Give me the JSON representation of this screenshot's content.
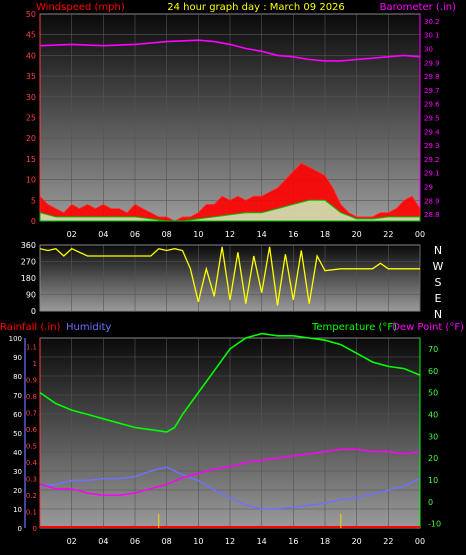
{
  "header": {
    "left_title": "Windspeed (mph)",
    "center_title": "24 hour graph day : March 09 2026",
    "right_title": "Barometer (.in)"
  },
  "lower_header": {
    "rain_label": "Rainfall (.in)",
    "humidity_label": "Humidity",
    "temp_label": "Temperature (°F)",
    "dew_label": "Dew Point (°F)"
  },
  "colors": {
    "wind": "#ff0000",
    "gust_fill": "#ff0000",
    "avg_wind": "#00c000",
    "barometer": "#ff00ff",
    "direction": "#ffff00",
    "rain": "#ff0000",
    "humidity": "#7070ff",
    "temperature": "#00ff00",
    "dew_point": "#ff00ff",
    "axis_text": "#ffffff"
  },
  "chart_data": [
    {
      "type": "area",
      "name": "wind",
      "x_ticks": [
        "02",
        "04",
        "06",
        "08",
        "10",
        "12",
        "14",
        "16",
        "18",
        "20",
        "22",
        "00"
      ],
      "y_left_ticks": [
        0,
        5,
        10,
        15,
        20,
        25,
        30,
        35,
        40,
        45,
        50
      ],
      "y_left_range": [
        0,
        50
      ],
      "y_right_ticks": [
        "28.8",
        "28.9",
        "29",
        "29.1",
        "29.2",
        "29.3",
        "29.4",
        "29.5",
        "29.6",
        "29.7",
        "29.8",
        "29.9",
        "30",
        "30.1",
        "30.2"
      ],
      "y_right_range": [
        28.75,
        30.25
      ],
      "x_range": [
        0,
        24
      ],
      "series": [
        {
          "name": "Windspeed",
          "x": [
            0,
            0.5,
            1,
            1.5,
            2,
            2.5,
            3,
            3.5,
            4,
            4.5,
            5,
            5.5,
            6,
            6.5,
            7,
            7.5,
            8,
            8.5,
            9,
            9.5,
            10,
            10.5,
            11,
            11.5,
            12,
            12.5,
            13,
            13.5,
            14,
            14.5,
            15,
            15.5,
            16,
            16.5,
            17,
            17.5,
            18,
            18.5,
            19,
            19.5,
            20,
            20.5,
            21,
            21.5,
            22,
            22.5,
            23,
            23.5,
            24
          ],
          "values": [
            6,
            4,
            3,
            2,
            4,
            3,
            4,
            3,
            4,
            3,
            3,
            2,
            4,
            3,
            2,
            1,
            1,
            0,
            1,
            1,
            2,
            4,
            4,
            6,
            5,
            6,
            5,
            6,
            6,
            7,
            8,
            10,
            12,
            14,
            13,
            12,
            11,
            8,
            4,
            2,
            1,
            1,
            1,
            2,
            2,
            3,
            5,
            6,
            3
          ]
        },
        {
          "name": "Average",
          "x": [
            0,
            1,
            2,
            3,
            4,
            5,
            6,
            7,
            8,
            9,
            10,
            11,
            12,
            13,
            14,
            15,
            16,
            17,
            18,
            19,
            20,
            21,
            22,
            23,
            24
          ],
          "values": [
            2,
            1,
            1,
            1,
            1,
            1,
            1,
            0.5,
            0,
            0,
            0.5,
            1,
            1.5,
            2,
            2,
            3,
            4,
            5,
            5,
            2,
            0.5,
            0.5,
            1,
            1,
            1
          ]
        },
        {
          "name": "Barometer",
          "x": [
            0,
            2,
            4,
            6,
            8,
            10,
            11,
            12,
            13,
            14,
            15,
            16,
            17,
            18,
            19,
            20,
            21,
            22,
            23,
            24
          ],
          "values": [
            30.02,
            30.03,
            30.02,
            30.03,
            30.05,
            30.06,
            30.05,
            30.03,
            30.0,
            29.98,
            29.95,
            29.94,
            29.92,
            29.91,
            29.91,
            29.92,
            29.93,
            29.94,
            29.95,
            29.94
          ]
        }
      ]
    },
    {
      "type": "line",
      "name": "wind_direction",
      "y_left_ticks": [
        0,
        90,
        180,
        270,
        360
      ],
      "y_range": [
        0,
        360
      ],
      "compass_labels": [
        "N",
        "W",
        "S",
        "E",
        "N"
      ],
      "x_range": [
        0,
        24
      ],
      "series": [
        {
          "name": "Direction",
          "x": [
            0,
            0.5,
            1,
            1.5,
            2,
            3,
            4,
            5,
            6,
            7,
            7.5,
            8,
            8.5,
            9,
            9.5,
            10,
            10.5,
            11,
            11.5,
            12,
            12.5,
            13,
            13.5,
            14,
            14.5,
            15,
            15.5,
            16,
            16.5,
            17,
            17.5,
            18,
            19,
            20,
            21,
            21.5,
            22,
            23,
            24
          ],
          "values": [
            340,
            330,
            340,
            300,
            340,
            300,
            300,
            300,
            300,
            300,
            340,
            330,
            340,
            330,
            230,
            50,
            230,
            80,
            350,
            60,
            320,
            40,
            300,
            100,
            350,
            30,
            310,
            60,
            330,
            40,
            300,
            220,
            230,
            230,
            230,
            260,
            230,
            230,
            230
          ]
        }
      ]
    },
    {
      "type": "line",
      "name": "temperature_humidity",
      "x_ticks": [
        "02",
        "04",
        "06",
        "08",
        "10",
        "12",
        "14",
        "16",
        "18",
        "20",
        "22",
        "00"
      ],
      "y_left_humidity_ticks": [
        0,
        10,
        20,
        30,
        40,
        50,
        60,
        70,
        80,
        90,
        100
      ],
      "y_left_rain_ticks": [
        "0",
        "0.1",
        "0.2",
        "0.3",
        "0.4",
        "0.5",
        "0.6",
        "0.7",
        "0.8",
        "0.9",
        "1",
        "1.1"
      ],
      "y_right_ticks": [
        -10,
        0,
        10,
        20,
        30,
        40,
        50,
        60,
        70
      ],
      "y_right_range": [
        -12,
        75
      ],
      "x_range": [
        0,
        24
      ],
      "series": [
        {
          "name": "Temperature",
          "x": [
            0,
            1,
            2,
            3,
            4,
            5,
            6,
            7,
            8,
            8.5,
            9,
            10,
            11,
            12,
            13,
            14,
            15,
            16,
            17,
            18,
            19,
            20,
            21,
            22,
            23,
            24
          ],
          "values": [
            50,
            45,
            42,
            40,
            38,
            36,
            34,
            33,
            32,
            34,
            40,
            50,
            60,
            70,
            75,
            77,
            76,
            76,
            75,
            74,
            72,
            68,
            64,
            62,
            61,
            58
          ]
        },
        {
          "name": "Dew Point",
          "x": [
            0,
            1,
            2,
            3,
            4,
            5,
            6,
            7,
            8,
            9,
            10,
            11,
            12,
            13,
            14,
            15,
            16,
            17,
            18,
            19,
            20,
            21,
            22,
            23,
            24
          ],
          "values": [
            8,
            6,
            6,
            4,
            3,
            3,
            4,
            6,
            8,
            11,
            13,
            15,
            16,
            18,
            19,
            20,
            21,
            22,
            23,
            24,
            24,
            23,
            23,
            22,
            23
          ]
        },
        {
          "name": "Humidity",
          "x": [
            0,
            1,
            2,
            3,
            4,
            5,
            6,
            7,
            8,
            9,
            10,
            11,
            12,
            13,
            14,
            15,
            16,
            17,
            18,
            19,
            20,
            21,
            22,
            23,
            24
          ],
          "values": [
            22,
            23,
            25,
            25,
            26,
            26,
            27,
            30,
            32,
            28,
            25,
            20,
            16,
            12,
            10,
            10,
            11,
            12,
            13,
            15,
            16,
            18,
            20,
            22,
            26
          ]
        },
        {
          "name": "Rainfall",
          "x": [
            0,
            24
          ],
          "values": [
            0,
            0
          ]
        }
      ]
    }
  ]
}
